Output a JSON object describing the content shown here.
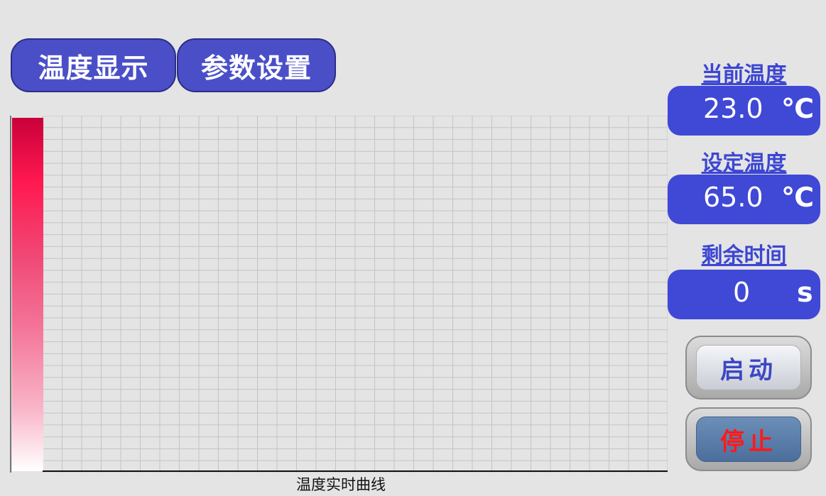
{
  "tabs": [
    {
      "label": "温度显示"
    },
    {
      "label": "参数设置"
    }
  ],
  "chart": {
    "caption": "温度实时曲线"
  },
  "readouts": {
    "current_temp": {
      "label": "当前温度",
      "value": "23.0",
      "unit": "℃"
    },
    "set_temp": {
      "label": "设定温度",
      "value": "65.0",
      "unit": "℃"
    },
    "remaining_time": {
      "label": "剩余时间",
      "value": "0",
      "unit": "s"
    }
  },
  "buttons": {
    "start_label": "启动",
    "stop_label": "停止"
  },
  "colors": {
    "accent": "#4048d6",
    "label": "#3c46d2",
    "stop_text": "#ff1a1a"
  }
}
